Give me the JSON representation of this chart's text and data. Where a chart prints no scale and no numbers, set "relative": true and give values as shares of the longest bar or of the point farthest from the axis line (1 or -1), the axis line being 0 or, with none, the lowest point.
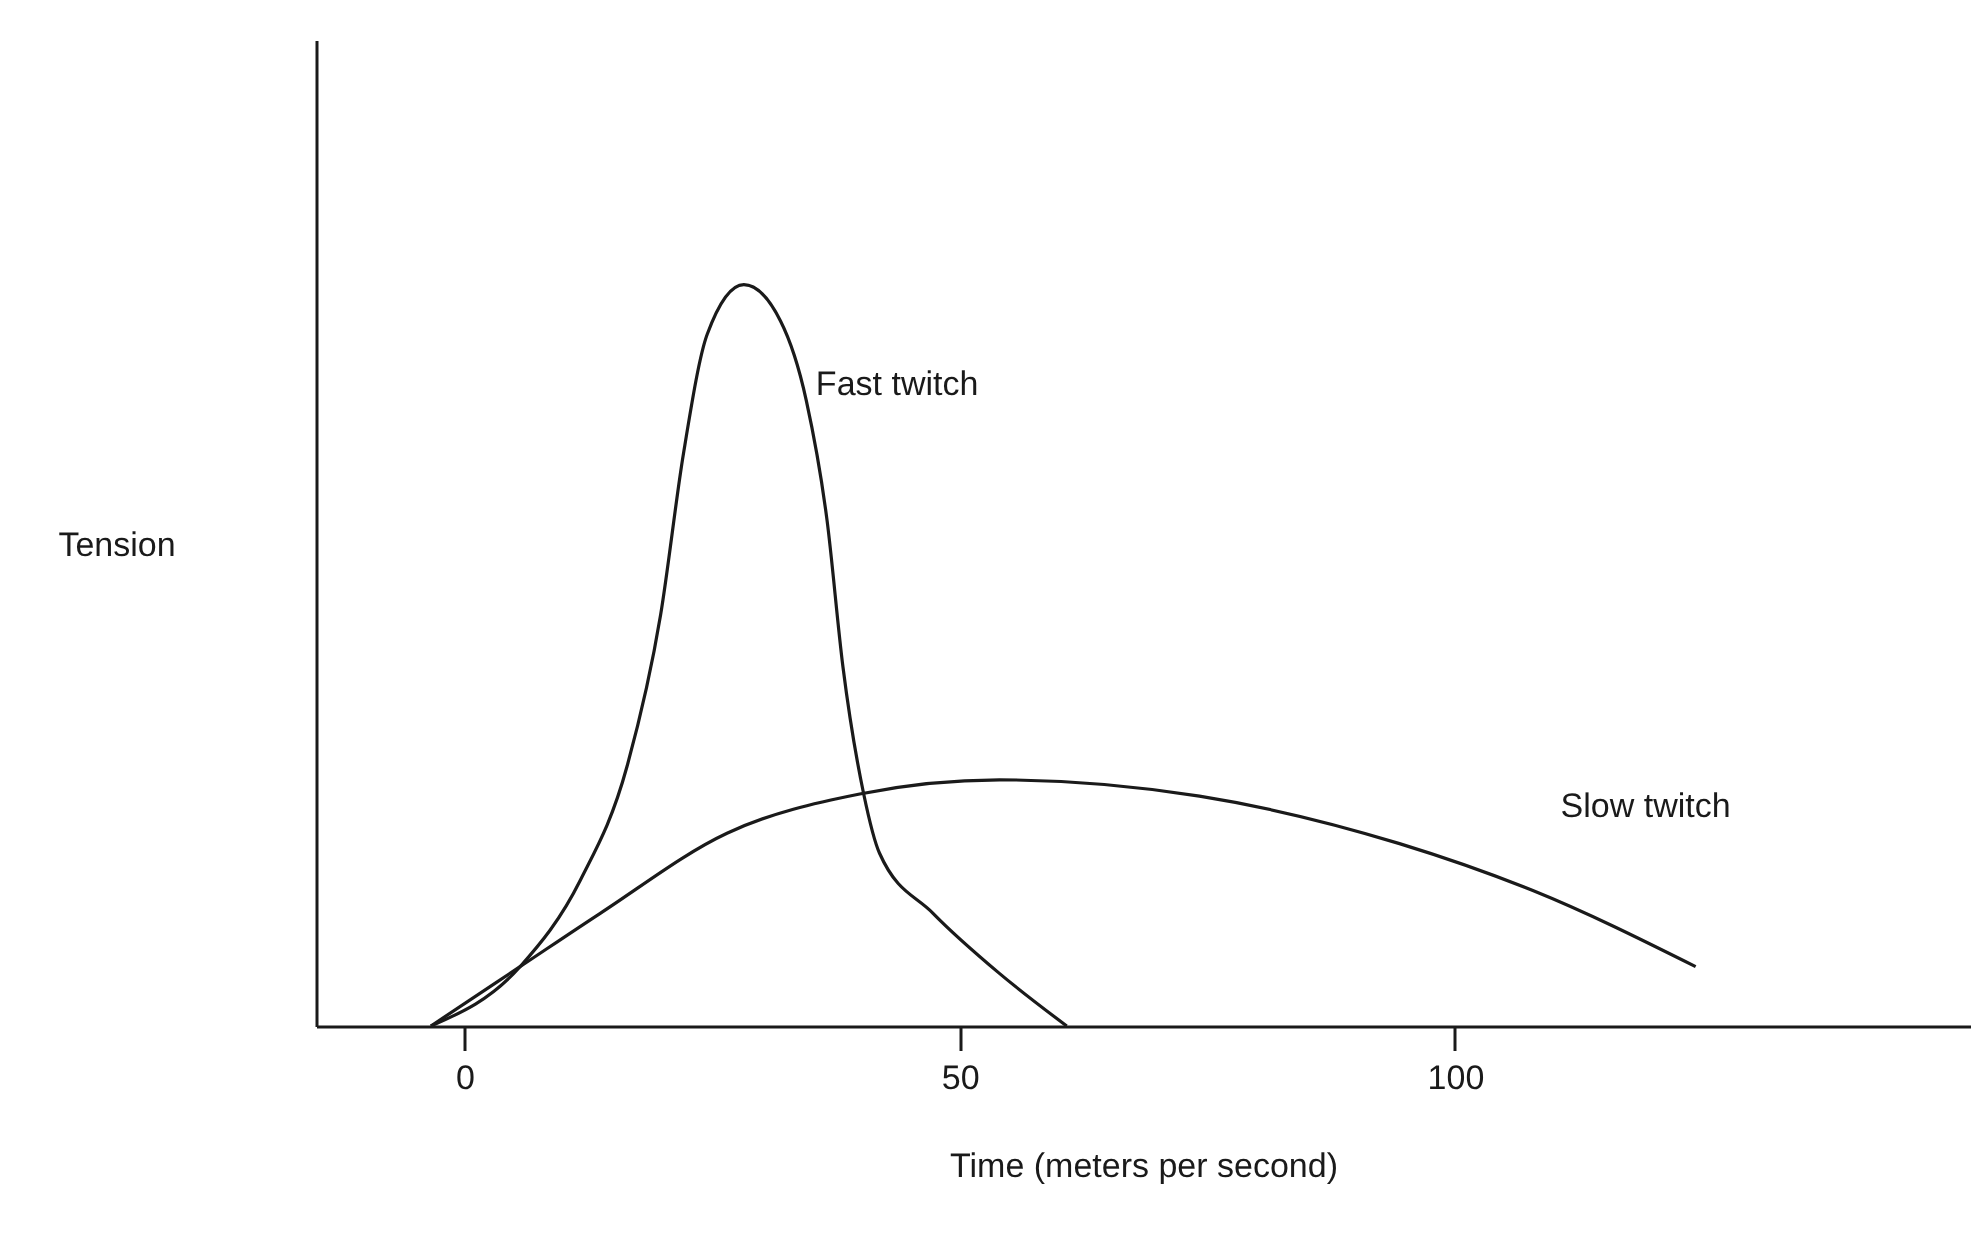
{
  "chart_data": {
    "type": "line",
    "relative": true,
    "xlabel": "Time (meters per second)",
    "ylabel": "Tension",
    "xlim": [
      -15,
      152
    ],
    "xticks": [
      0,
      50,
      100
    ],
    "grid": false,
    "legend": false,
    "marker": "none",
    "line_style": "solid",
    "series": [
      {
        "name": "Fast twitch",
        "color": "#1a1a1a",
        "x": [
          -3.4,
          5.6,
          11.7,
          16.4,
          19.8,
          22.1,
          24.5,
          28.2,
          31.9,
          34.5,
          36.6,
          38.2,
          40.3,
          41.9,
          47.3,
          54,
          60.8
        ],
        "values": [
          0,
          0.08,
          0.197,
          0.35,
          0.555,
          0.772,
          0.933,
          1,
          0.951,
          0.844,
          0.682,
          0.485,
          0.313,
          0.233,
          0.152,
          0.071,
          0
        ]
      },
      {
        "name": "Slow twitch",
        "color": "#1a1a1a",
        "x": [
          -3.4,
          5.6,
          13.7,
          26.5,
          39.9,
          54,
          74.2,
          94.4,
          107.8,
          124.3
        ],
        "values": [
          0,
          0.08,
          0.152,
          0.26,
          0.313,
          0.332,
          0.31,
          0.246,
          0.183,
          0.08
        ]
      }
    ]
  }
}
